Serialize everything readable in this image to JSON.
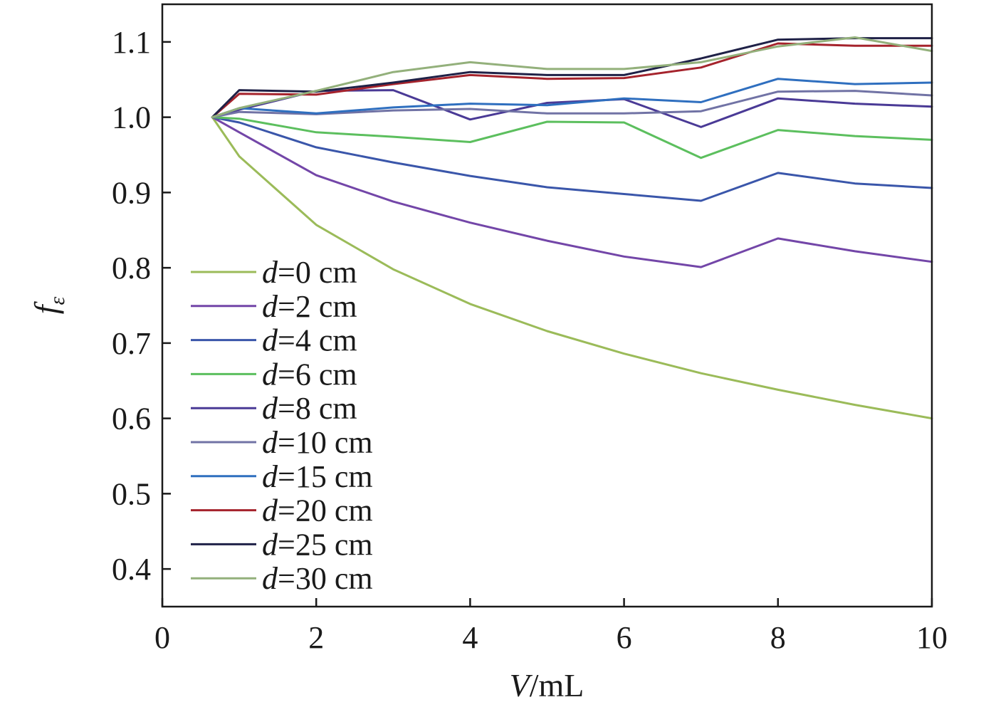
{
  "chart_data": {
    "type": "line",
    "xlabel": {
      "var": "V",
      "unit": "/mL"
    },
    "ylabel": {
      "var": "f",
      "sub": "ε"
    },
    "xlim": [
      0,
      10
    ],
    "ylim": [
      0.35,
      1.15
    ],
    "xticks": [
      0,
      2,
      4,
      6,
      8,
      10
    ],
    "xtick_labels": [
      "0",
      "2",
      "4",
      "6",
      "8",
      "10"
    ],
    "yticks": [
      0.4,
      0.5,
      0.6,
      0.7,
      0.8,
      0.9,
      1.0,
      1.1
    ],
    "ytick_labels": [
      "0.4",
      "0.5",
      "0.6",
      "0.7",
      "0.8",
      "0.9",
      "1.0",
      "1.1"
    ],
    "grid": false,
    "legend_position": "left",
    "x": [
      0.65,
      1,
      2,
      3,
      4,
      5,
      6,
      7,
      8,
      9,
      10
    ],
    "series": [
      {
        "name": "d=0 cm",
        "prefix": "d",
        "suffix": "=0 cm",
        "color": "#9bbb59",
        "values": [
          1.0,
          0.948,
          0.857,
          0.798,
          0.752,
          0.716,
          0.686,
          0.66,
          0.638,
          0.618,
          0.6
        ]
      },
      {
        "name": "d=2 cm",
        "prefix": "d",
        "suffix": "=2 cm",
        "color": "#7346a8",
        "values": [
          1.0,
          0.98,
          0.923,
          0.888,
          0.86,
          0.836,
          0.815,
          0.801,
          0.839,
          0.822,
          0.808
        ]
      },
      {
        "name": "d=4 cm",
        "prefix": "d",
        "suffix": "=4 cm",
        "color": "#3a56aa",
        "values": [
          1.0,
          0.993,
          0.96,
          0.94,
          0.922,
          0.907,
          0.898,
          0.889,
          0.926,
          0.912,
          0.906
        ]
      },
      {
        "name": "d=6 cm",
        "prefix": "d",
        "suffix": "=6 cm",
        "color": "#5cbf5e",
        "values": [
          1.0,
          0.998,
          0.98,
          0.974,
          0.967,
          0.994,
          0.993,
          0.946,
          0.983,
          0.975,
          0.97
        ]
      },
      {
        "name": "d=8 cm",
        "prefix": "d",
        "suffix": "=8 cm",
        "color": "#4a3a96",
        "values": [
          1.0,
          1.01,
          1.035,
          1.036,
          0.997,
          1.019,
          1.024,
          0.987,
          1.025,
          1.018,
          1.014
        ]
      },
      {
        "name": "d=10 cm",
        "prefix": "d",
        "suffix": "=10 cm",
        "color": "#7173a5",
        "values": [
          1.0,
          1.007,
          1.004,
          1.009,
          1.011,
          1.005,
          1.005,
          1.008,
          1.034,
          1.035,
          1.029
        ]
      },
      {
        "name": "d=15 cm",
        "prefix": "d",
        "suffix": "=15 cm",
        "color": "#2f6fbf",
        "values": [
          1.0,
          1.012,
          1.005,
          1.013,
          1.018,
          1.016,
          1.025,
          1.02,
          1.051,
          1.044,
          1.046
        ]
      },
      {
        "name": "d=20 cm",
        "prefix": "d",
        "suffix": "=20 cm",
        "color": "#a5232c",
        "values": [
          1.0,
          1.031,
          1.03,
          1.044,
          1.056,
          1.051,
          1.052,
          1.066,
          1.098,
          1.095,
          1.095
        ]
      },
      {
        "name": "d=25 cm",
        "prefix": "d",
        "suffix": "=25 cm",
        "color": "#1f2147",
        "values": [
          1.0,
          1.036,
          1.034,
          1.046,
          1.06,
          1.056,
          1.056,
          1.078,
          1.103,
          1.105,
          1.105
        ]
      },
      {
        "name": "d=30 cm",
        "prefix": "d",
        "suffix": "=30 cm",
        "color": "#93b07b",
        "values": [
          1.0,
          1.012,
          1.035,
          1.06,
          1.073,
          1.064,
          1.064,
          1.073,
          1.094,
          1.106,
          1.088
        ]
      }
    ]
  }
}
